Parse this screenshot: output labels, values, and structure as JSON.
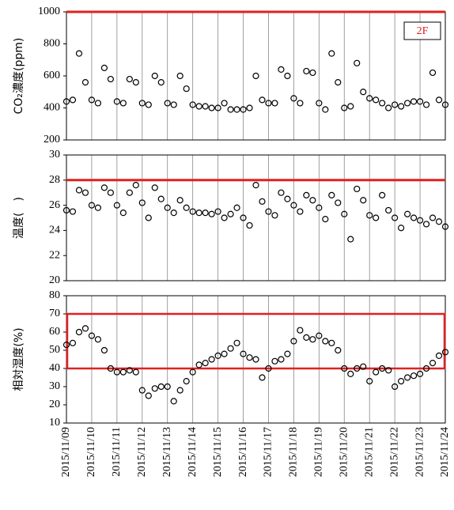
{
  "chart_data": [
    {
      "type": "scatter",
      "ylabel": "CO₂濃度(ppm)",
      "annotation": "2F",
      "color": "#000000",
      "limit_color": "#e02020",
      "limit": 1000,
      "ylim": [
        200,
        1000
      ],
      "yticks": [
        200,
        400,
        600,
        800,
        1000
      ],
      "x": [
        0,
        6,
        12,
        18,
        24,
        30,
        36,
        42,
        48,
        54,
        60,
        66,
        72,
        78,
        84,
        90,
        96,
        102,
        108,
        114,
        120,
        126,
        132,
        138,
        144,
        150,
        156,
        162,
        168,
        174,
        180,
        186,
        192,
        198,
        204,
        210,
        216,
        222,
        228,
        234,
        240,
        246,
        252,
        258,
        264,
        270,
        276,
        282,
        288,
        294,
        300,
        306,
        312,
        318,
        324,
        330,
        336,
        342,
        348,
        354,
        360
      ],
      "values": [
        440,
        450,
        740,
        560,
        450,
        430,
        650,
        580,
        440,
        430,
        580,
        560,
        430,
        420,
        600,
        560,
        430,
        420,
        600,
        520,
        420,
        410,
        410,
        400,
        400,
        430,
        390,
        390,
        390,
        400,
        600,
        450,
        430,
        430,
        640,
        600,
        460,
        430,
        630,
        620,
        430,
        390,
        740,
        560,
        400,
        410,
        680,
        500,
        460,
        450,
        430,
        400,
        420,
        410,
        430,
        440,
        440,
        420,
        620,
        450,
        420
      ]
    },
    {
      "type": "scatter",
      "ylabel": "温度(　)",
      "color": "#000000",
      "limit_color": "#e02020",
      "limit": 28,
      "ylim": [
        20,
        30
      ],
      "yticks": [
        20,
        22,
        24,
        26,
        28,
        30
      ],
      "x": [
        0,
        6,
        12,
        18,
        24,
        30,
        36,
        42,
        48,
        54,
        60,
        66,
        72,
        78,
        84,
        90,
        96,
        102,
        108,
        114,
        120,
        126,
        132,
        138,
        144,
        150,
        156,
        162,
        168,
        174,
        180,
        186,
        192,
        198,
        204,
        210,
        216,
        222,
        228,
        234,
        240,
        246,
        252,
        258,
        264,
        270,
        276,
        282,
        288,
        294,
        300,
        306,
        312,
        318,
        324,
        330,
        336,
        342,
        348,
        354,
        360
      ],
      "values": [
        25.6,
        25.5,
        27.2,
        27.0,
        26.0,
        25.8,
        27.4,
        27.0,
        26.0,
        25.4,
        27.0,
        27.6,
        26.2,
        25.0,
        27.4,
        26.5,
        25.8,
        25.4,
        26.4,
        25.8,
        25.5,
        25.4,
        25.4,
        25.3,
        25.5,
        25.0,
        25.3,
        25.8,
        25.0,
        24.4,
        27.6,
        26.3,
        25.5,
        25.2,
        27.0,
        26.5,
        26.0,
        25.5,
        26.8,
        26.4,
        25.8,
        24.9,
        26.8,
        26.2,
        25.3,
        23.3,
        27.3,
        26.4,
        25.2,
        25.0,
        26.8,
        25.6,
        25.0,
        24.2,
        25.3,
        25.0,
        24.8,
        24.5,
        25.0,
        24.7,
        24.3
      ]
    },
    {
      "type": "scatter",
      "ylabel": "相対湿度(%)",
      "color": "#000000",
      "limit_color": "#e02020",
      "band": [
        40,
        70
      ],
      "ylim": [
        10,
        80
      ],
      "yticks": [
        10,
        20,
        30,
        40,
        50,
        60,
        70,
        80
      ],
      "xlim": [
        0,
        360
      ],
      "xticks": [
        {
          "value": 0,
          "label": "2015/11/09"
        },
        {
          "value": 24,
          "label": "2015/11/10"
        },
        {
          "value": 48,
          "label": "2015/11/11"
        },
        {
          "value": 72,
          "label": "2015/11/12"
        },
        {
          "value": 96,
          "label": "2015/11/13"
        },
        {
          "value": 120,
          "label": "2015/11/14"
        },
        {
          "value": 144,
          "label": "2015/11/15"
        },
        {
          "value": 168,
          "label": "2015/11/16"
        },
        {
          "value": 192,
          "label": "2015/11/17"
        },
        {
          "value": 216,
          "label": "2015/11/18"
        },
        {
          "value": 240,
          "label": "2015/11/19"
        },
        {
          "value": 264,
          "label": "2015/11/20"
        },
        {
          "value": 288,
          "label": "2015/11/21"
        },
        {
          "value": 312,
          "label": "2015/11/22"
        },
        {
          "value": 336,
          "label": "2015/11/23"
        },
        {
          "value": 360,
          "label": "2015/11/24"
        }
      ],
      "x": [
        0,
        6,
        12,
        18,
        24,
        30,
        36,
        42,
        48,
        54,
        60,
        66,
        72,
        78,
        84,
        90,
        96,
        102,
        108,
        114,
        120,
        126,
        132,
        138,
        144,
        150,
        156,
        162,
        168,
        174,
        180,
        186,
        192,
        198,
        204,
        210,
        216,
        222,
        228,
        234,
        240,
        246,
        252,
        258,
        264,
        270,
        276,
        282,
        288,
        294,
        300,
        306,
        312,
        318,
        324,
        330,
        336,
        342,
        348,
        354,
        360
      ],
      "values": [
        53,
        54,
        60,
        62,
        58,
        56,
        50,
        40,
        38,
        38,
        39,
        38,
        28,
        25,
        29,
        30,
        30,
        22,
        28,
        33,
        38,
        42,
        43,
        45,
        47,
        48,
        51,
        54,
        48,
        46,
        45,
        35,
        40,
        44,
        45,
        48,
        55,
        61,
        57,
        56,
        58,
        55,
        54,
        50,
        40,
        37,
        40,
        41,
        33,
        38,
        40,
        39,
        30,
        33,
        35,
        36,
        37,
        40,
        43,
        47,
        49
      ]
    }
  ]
}
